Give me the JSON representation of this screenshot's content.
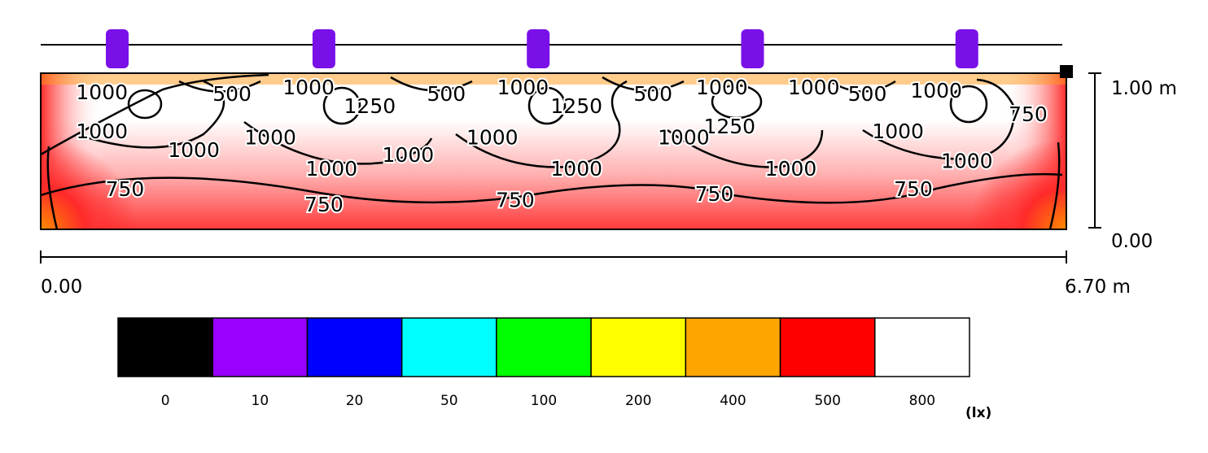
{
  "chart_data": {
    "type": "heatmap",
    "unit": "(lx)",
    "x_axis": {
      "start_label": "0.00",
      "end_label": "6.70 m",
      "range": [
        0,
        6.7
      ]
    },
    "y_axis": {
      "bottom_label": "0.00",
      "top_label": "1.00 m",
      "range": [
        0,
        1.0
      ]
    },
    "luminaire_positions_m": [
      0.5,
      1.85,
      3.25,
      4.65,
      6.05
    ],
    "contour_labels": [
      {
        "text": "1000",
        "x": 0.4,
        "y": 0.87
      },
      {
        "text": "500",
        "x": 1.25,
        "y": 0.86
      },
      {
        "text": "1000",
        "x": 1.75,
        "y": 0.9
      },
      {
        "text": "1250",
        "x": 2.15,
        "y": 0.78
      },
      {
        "text": "500",
        "x": 2.65,
        "y": 0.86
      },
      {
        "text": "1000",
        "x": 3.15,
        "y": 0.9
      },
      {
        "text": "1250",
        "x": 3.5,
        "y": 0.78
      },
      {
        "text": "500",
        "x": 4.0,
        "y": 0.86
      },
      {
        "text": "1000",
        "x": 4.45,
        "y": 0.9
      },
      {
        "text": "1000",
        "x": 5.05,
        "y": 0.9
      },
      {
        "text": "500",
        "x": 5.4,
        "y": 0.86
      },
      {
        "text": "1000",
        "x": 5.85,
        "y": 0.88
      },
      {
        "text": "750",
        "x": 6.45,
        "y": 0.73
      },
      {
        "text": "1250",
        "x": 4.5,
        "y": 0.65
      },
      {
        "text": "1000",
        "x": 0.4,
        "y": 0.62
      },
      {
        "text": "1000",
        "x": 1.5,
        "y": 0.58
      },
      {
        "text": "1000",
        "x": 2.95,
        "y": 0.58
      },
      {
        "text": "1000",
        "x": 4.2,
        "y": 0.58
      },
      {
        "text": "1000",
        "x": 5.6,
        "y": 0.62
      },
      {
        "text": "1000",
        "x": 1.0,
        "y": 0.5
      },
      {
        "text": "1000",
        "x": 2.4,
        "y": 0.47
      },
      {
        "text": "1000",
        "x": 1.9,
        "y": 0.38
      },
      {
        "text": "1000",
        "x": 3.5,
        "y": 0.38
      },
      {
        "text": "1000",
        "x": 4.9,
        "y": 0.38
      },
      {
        "text": "1000",
        "x": 6.05,
        "y": 0.43
      },
      {
        "text": "750",
        "x": 0.55,
        "y": 0.25
      },
      {
        "text": "750",
        "x": 1.85,
        "y": 0.15
      },
      {
        "text": "750",
        "x": 3.1,
        "y": 0.18
      },
      {
        "text": "750",
        "x": 4.4,
        "y": 0.22
      },
      {
        "text": "750",
        "x": 5.7,
        "y": 0.25
      }
    ],
    "legend": [
      {
        "value": "0",
        "color": "#000000"
      },
      {
        "value": "10",
        "color": "#9900ff"
      },
      {
        "value": "20",
        "color": "#0000ff"
      },
      {
        "value": "50",
        "color": "#00ffff"
      },
      {
        "value": "100",
        "color": "#00ff00"
      },
      {
        "value": "200",
        "color": "#ffff00"
      },
      {
        "value": "400",
        "color": "#ffa500"
      },
      {
        "value": "500",
        "color": "#ff0000"
      },
      {
        "value": "800",
        "color": "#ffffff"
      }
    ]
  }
}
